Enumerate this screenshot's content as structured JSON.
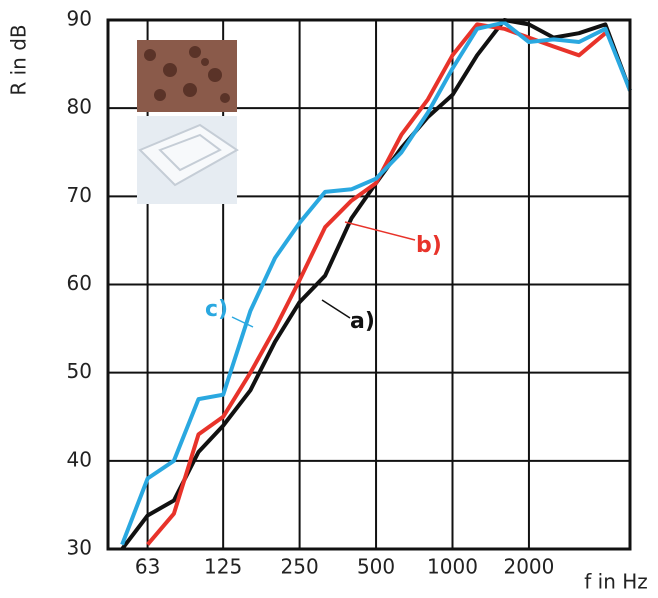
{
  "chart_data": {
    "type": "line",
    "y_label": "R in dB",
    "x_label": "f in Hz",
    "x": [
      50,
      63,
      80,
      100,
      125,
      160,
      200,
      250,
      315,
      400,
      500,
      630,
      800,
      1000,
      1250,
      1600,
      2000,
      2500,
      3150,
      4000,
      5000
    ],
    "series": [
      {
        "name": "a)",
        "color": "#111111",
        "values": [
          30,
          33.8,
          35.5,
          41,
          44,
          48,
          53.5,
          58,
          61,
          67.5,
          71.5,
          75.5,
          79,
          81.5,
          86,
          90,
          89.5,
          88,
          88.5,
          89.5,
          82
        ]
      },
      {
        "name": "b)",
        "color": "#e8332a",
        "values": [
          null,
          30.5,
          34,
          43,
          45,
          50,
          55,
          60.5,
          66.5,
          69.5,
          71.5,
          77,
          81,
          86,
          89.5,
          89,
          88,
          87,
          86,
          88.5,
          null
        ]
      },
      {
        "name": "c)",
        "color": "#2aa8e0",
        "values": [
          30.5,
          38,
          40,
          47,
          47.5,
          57,
          63,
          67,
          70.5,
          70.8,
          72,
          75,
          79.5,
          84.5,
          89,
          89.7,
          87.5,
          87.8,
          87.5,
          89,
          82
        ]
      }
    ],
    "log_x": true,
    "xlim": [
      44,
      5000
    ],
    "xticks": [
      63,
      125,
      250,
      500,
      1000,
      2000
    ],
    "ylim": [
      30,
      90
    ],
    "yticks": [
      30,
      40,
      50,
      60,
      70,
      80,
      90
    ],
    "grid": true
  }
}
